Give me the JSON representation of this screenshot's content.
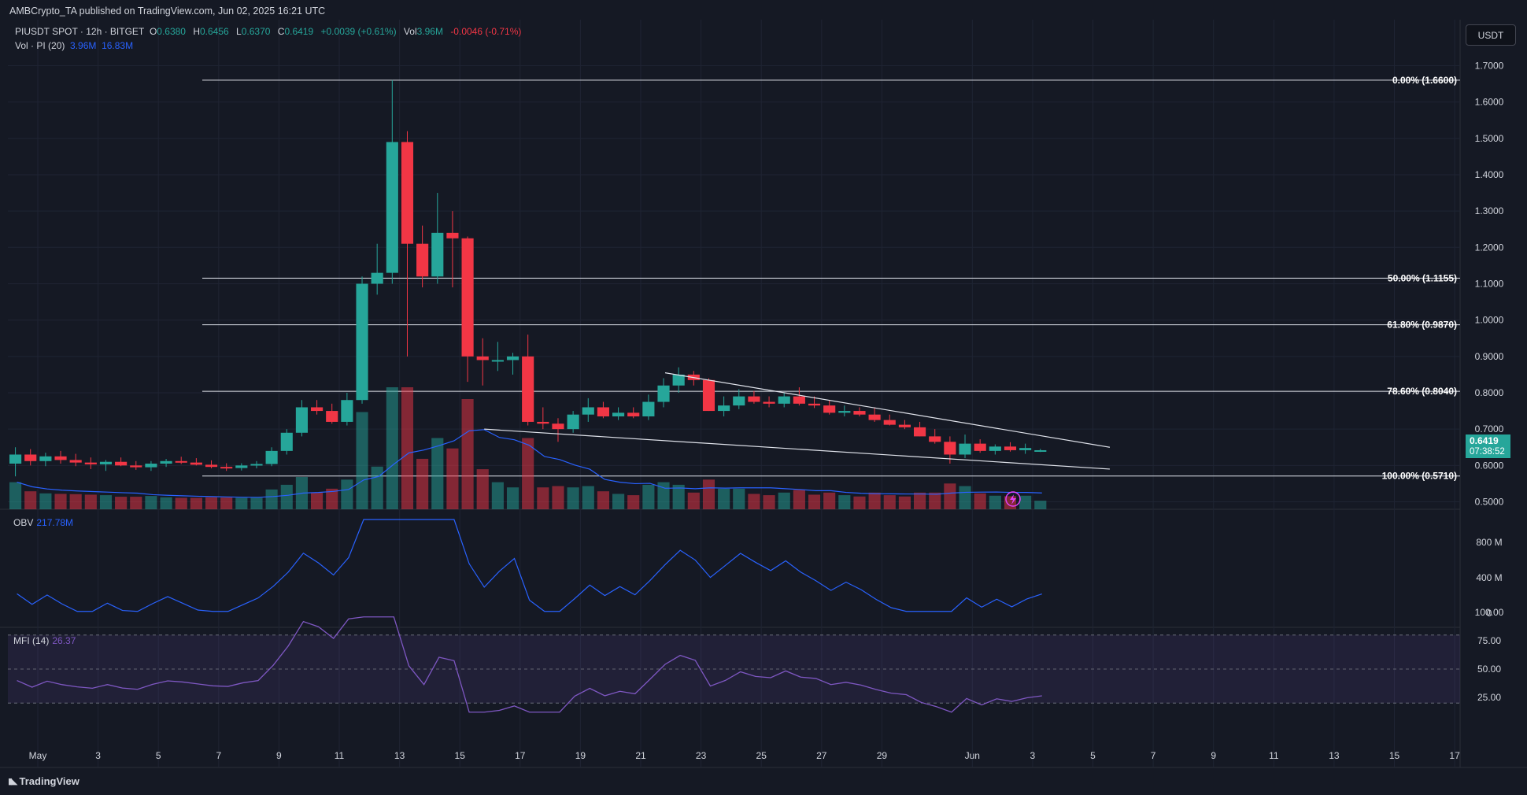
{
  "publish_text": "AMBCrypto_TA published on TradingView.com, Jun 02, 2025 16:21 UTC",
  "symbol": {
    "title": "PIUSDT SPOT · 12h · BITGET",
    "o_key": "O",
    "o": "0.6380",
    "h_key": "H",
    "h": "0.6456",
    "l_key": "L",
    "l": "0.6370",
    "c_key": "C",
    "c": "0.6419",
    "change": "+0.0039 (+0.61%)",
    "vol_key": "Vol",
    "vol": "3.96M",
    "vol_change": "-0.0046 (-0.71%)"
  },
  "volume_indicator": {
    "label": "Vol · PI (20)",
    "value1": "3.96M",
    "value2": "16.83M"
  },
  "obv": {
    "label": "OBV",
    "value": "217.78M"
  },
  "mfi": {
    "label": "MFI (14)",
    "value": "26.37"
  },
  "currency": "USDT",
  "last_price": {
    "price": "0.6419",
    "countdown": "07:38:52"
  },
  "brand": "TradingView",
  "colors": {
    "background": "#151924",
    "up": "#26a69a",
    "down": "#f23645",
    "obv_line": "#2962ff",
    "mfi_line": "#7e57c2",
    "grid": "#1f2433"
  },
  "chart_data": {
    "type": "candlestick",
    "timeframe": "12h",
    "y_axis_ticks": [
      "1.7000",
      "1.6000",
      "1.5000",
      "1.4000",
      "1.3000",
      "1.2000",
      "1.1000",
      "1.0000",
      "0.9000",
      "0.8000",
      "0.7000",
      "0.6000",
      "0.5000"
    ],
    "ylim": [
      0.45,
      1.72
    ],
    "x_tick_labels": [
      "May",
      "3",
      "5",
      "7",
      "9",
      "11",
      "13",
      "15",
      "17",
      "19",
      "21",
      "23",
      "25",
      "27",
      "29",
      "Jun",
      "3",
      "5",
      "7",
      "9",
      "11",
      "13",
      "15",
      "17"
    ],
    "x_ticks_day_index": [
      0,
      2,
      4,
      6,
      8,
      10,
      12,
      14,
      16,
      18,
      20,
      22,
      24,
      26,
      28,
      31,
      33,
      35,
      37,
      39,
      41,
      43,
      45,
      47
    ],
    "candles": [
      [
        0.605,
        0.65,
        0.57,
        0.63
      ],
      [
        0.63,
        0.645,
        0.6,
        0.612
      ],
      [
        0.612,
        0.635,
        0.598,
        0.625
      ],
      [
        0.625,
        0.64,
        0.605,
        0.615
      ],
      [
        0.615,
        0.632,
        0.598,
        0.608
      ],
      [
        0.608,
        0.622,
        0.59,
        0.603
      ],
      [
        0.603,
        0.615,
        0.585,
        0.61
      ],
      [
        0.61,
        0.622,
        0.598,
        0.6
      ],
      [
        0.6,
        0.612,
        0.588,
        0.595
      ],
      [
        0.595,
        0.612,
        0.585,
        0.605
      ],
      [
        0.605,
        0.618,
        0.596,
        0.612
      ],
      [
        0.612,
        0.624,
        0.604,
        0.608
      ],
      [
        0.608,
        0.62,
        0.6,
        0.602
      ],
      [
        0.602,
        0.614,
        0.592,
        0.596
      ],
      [
        0.596,
        0.606,
        0.585,
        0.593
      ],
      [
        0.593,
        0.606,
        0.586,
        0.6
      ],
      [
        0.6,
        0.612,
        0.592,
        0.604
      ],
      [
        0.604,
        0.65,
        0.598,
        0.64
      ],
      [
        0.64,
        0.7,
        0.63,
        0.69
      ],
      [
        0.69,
        0.78,
        0.68,
        0.76
      ],
      [
        0.76,
        0.78,
        0.74,
        0.75
      ],
      [
        0.75,
        0.77,
        0.715,
        0.72
      ],
      [
        0.72,
        0.8,
        0.71,
        0.78
      ],
      [
        0.78,
        1.12,
        0.77,
        1.1
      ],
      [
        1.1,
        1.21,
        1.07,
        1.13
      ],
      [
        1.13,
        1.66,
        1.1,
        1.49
      ],
      [
        1.49,
        1.52,
        0.9,
        1.21
      ],
      [
        1.21,
        1.26,
        1.09,
        1.12
      ],
      [
        1.12,
        1.35,
        1.1,
        1.24
      ],
      [
        1.24,
        1.3,
        1.09,
        1.225
      ],
      [
        1.225,
        1.23,
        0.83,
        0.9
      ],
      [
        0.9,
        0.95,
        0.82,
        0.89
      ],
      [
        0.89,
        0.94,
        0.86,
        0.89
      ],
      [
        0.89,
        0.91,
        0.85,
        0.9
      ],
      [
        0.9,
        0.96,
        0.71,
        0.72
      ],
      [
        0.72,
        0.76,
        0.7,
        0.715
      ],
      [
        0.715,
        0.73,
        0.665,
        0.7
      ],
      [
        0.7,
        0.75,
        0.69,
        0.74
      ],
      [
        0.74,
        0.785,
        0.72,
        0.76
      ],
      [
        0.76,
        0.775,
        0.73,
        0.735
      ],
      [
        0.735,
        0.76,
        0.725,
        0.745
      ],
      [
        0.745,
        0.76,
        0.73,
        0.735
      ],
      [
        0.735,
        0.795,
        0.725,
        0.775
      ],
      [
        0.775,
        0.84,
        0.76,
        0.82
      ],
      [
        0.82,
        0.87,
        0.8,
        0.85
      ],
      [
        0.85,
        0.86,
        0.82,
        0.835
      ],
      [
        0.835,
        0.84,
        0.75,
        0.75
      ],
      [
        0.75,
        0.79,
        0.735,
        0.765
      ],
      [
        0.765,
        0.81,
        0.755,
        0.79
      ],
      [
        0.79,
        0.805,
        0.77,
        0.775
      ],
      [
        0.775,
        0.79,
        0.76,
        0.77
      ],
      [
        0.77,
        0.8,
        0.76,
        0.79
      ],
      [
        0.79,
        0.815,
        0.765,
        0.77
      ],
      [
        0.77,
        0.79,
        0.758,
        0.765
      ],
      [
        0.765,
        0.78,
        0.74,
        0.745
      ],
      [
        0.745,
        0.765,
        0.735,
        0.75
      ],
      [
        0.75,
        0.76,
        0.735,
        0.74
      ],
      [
        0.74,
        0.76,
        0.72,
        0.725
      ],
      [
        0.725,
        0.74,
        0.71,
        0.712
      ],
      [
        0.712,
        0.725,
        0.7,
        0.705
      ],
      [
        0.705,
        0.72,
        0.68,
        0.68
      ],
      [
        0.68,
        0.7,
        0.66,
        0.665
      ],
      [
        0.665,
        0.68,
        0.605,
        0.63
      ],
      [
        0.63,
        0.685,
        0.62,
        0.66
      ],
      [
        0.66,
        0.672,
        0.635,
        0.64
      ],
      [
        0.64,
        0.658,
        0.63,
        0.652
      ],
      [
        0.652,
        0.664,
        0.638,
        0.642
      ],
      [
        0.642,
        0.66,
        0.632,
        0.648
      ],
      [
        0.638,
        0.6456,
        0.637,
        0.6419
      ]
    ],
    "volume_ma_color": "#2962ff",
    "fibonacci": [
      {
        "label": "0.00% (1.6600)",
        "price": 1.66
      },
      {
        "label": "50.00% (1.1155)",
        "price": 1.1155
      },
      {
        "label": "61.80% (0.9870)",
        "price": 0.987
      },
      {
        "label": "78.60% (0.8040)",
        "price": 0.804
      },
      {
        "label": "100.00% (0.5710)",
        "price": 0.571
      }
    ],
    "trendlines": [
      {
        "from": [
          43.5,
          0.855
        ],
        "to": [
          73,
          0.65
        ]
      },
      {
        "from": [
          31.5,
          0.7
        ],
        "to": [
          73,
          0.59
        ]
      }
    ],
    "obv_axis_ticks": [
      "800 M",
      "400 M",
      "0"
    ],
    "mfi_axis_ticks": [
      "100.00",
      "75.00",
      "50.00",
      "25.00"
    ]
  }
}
